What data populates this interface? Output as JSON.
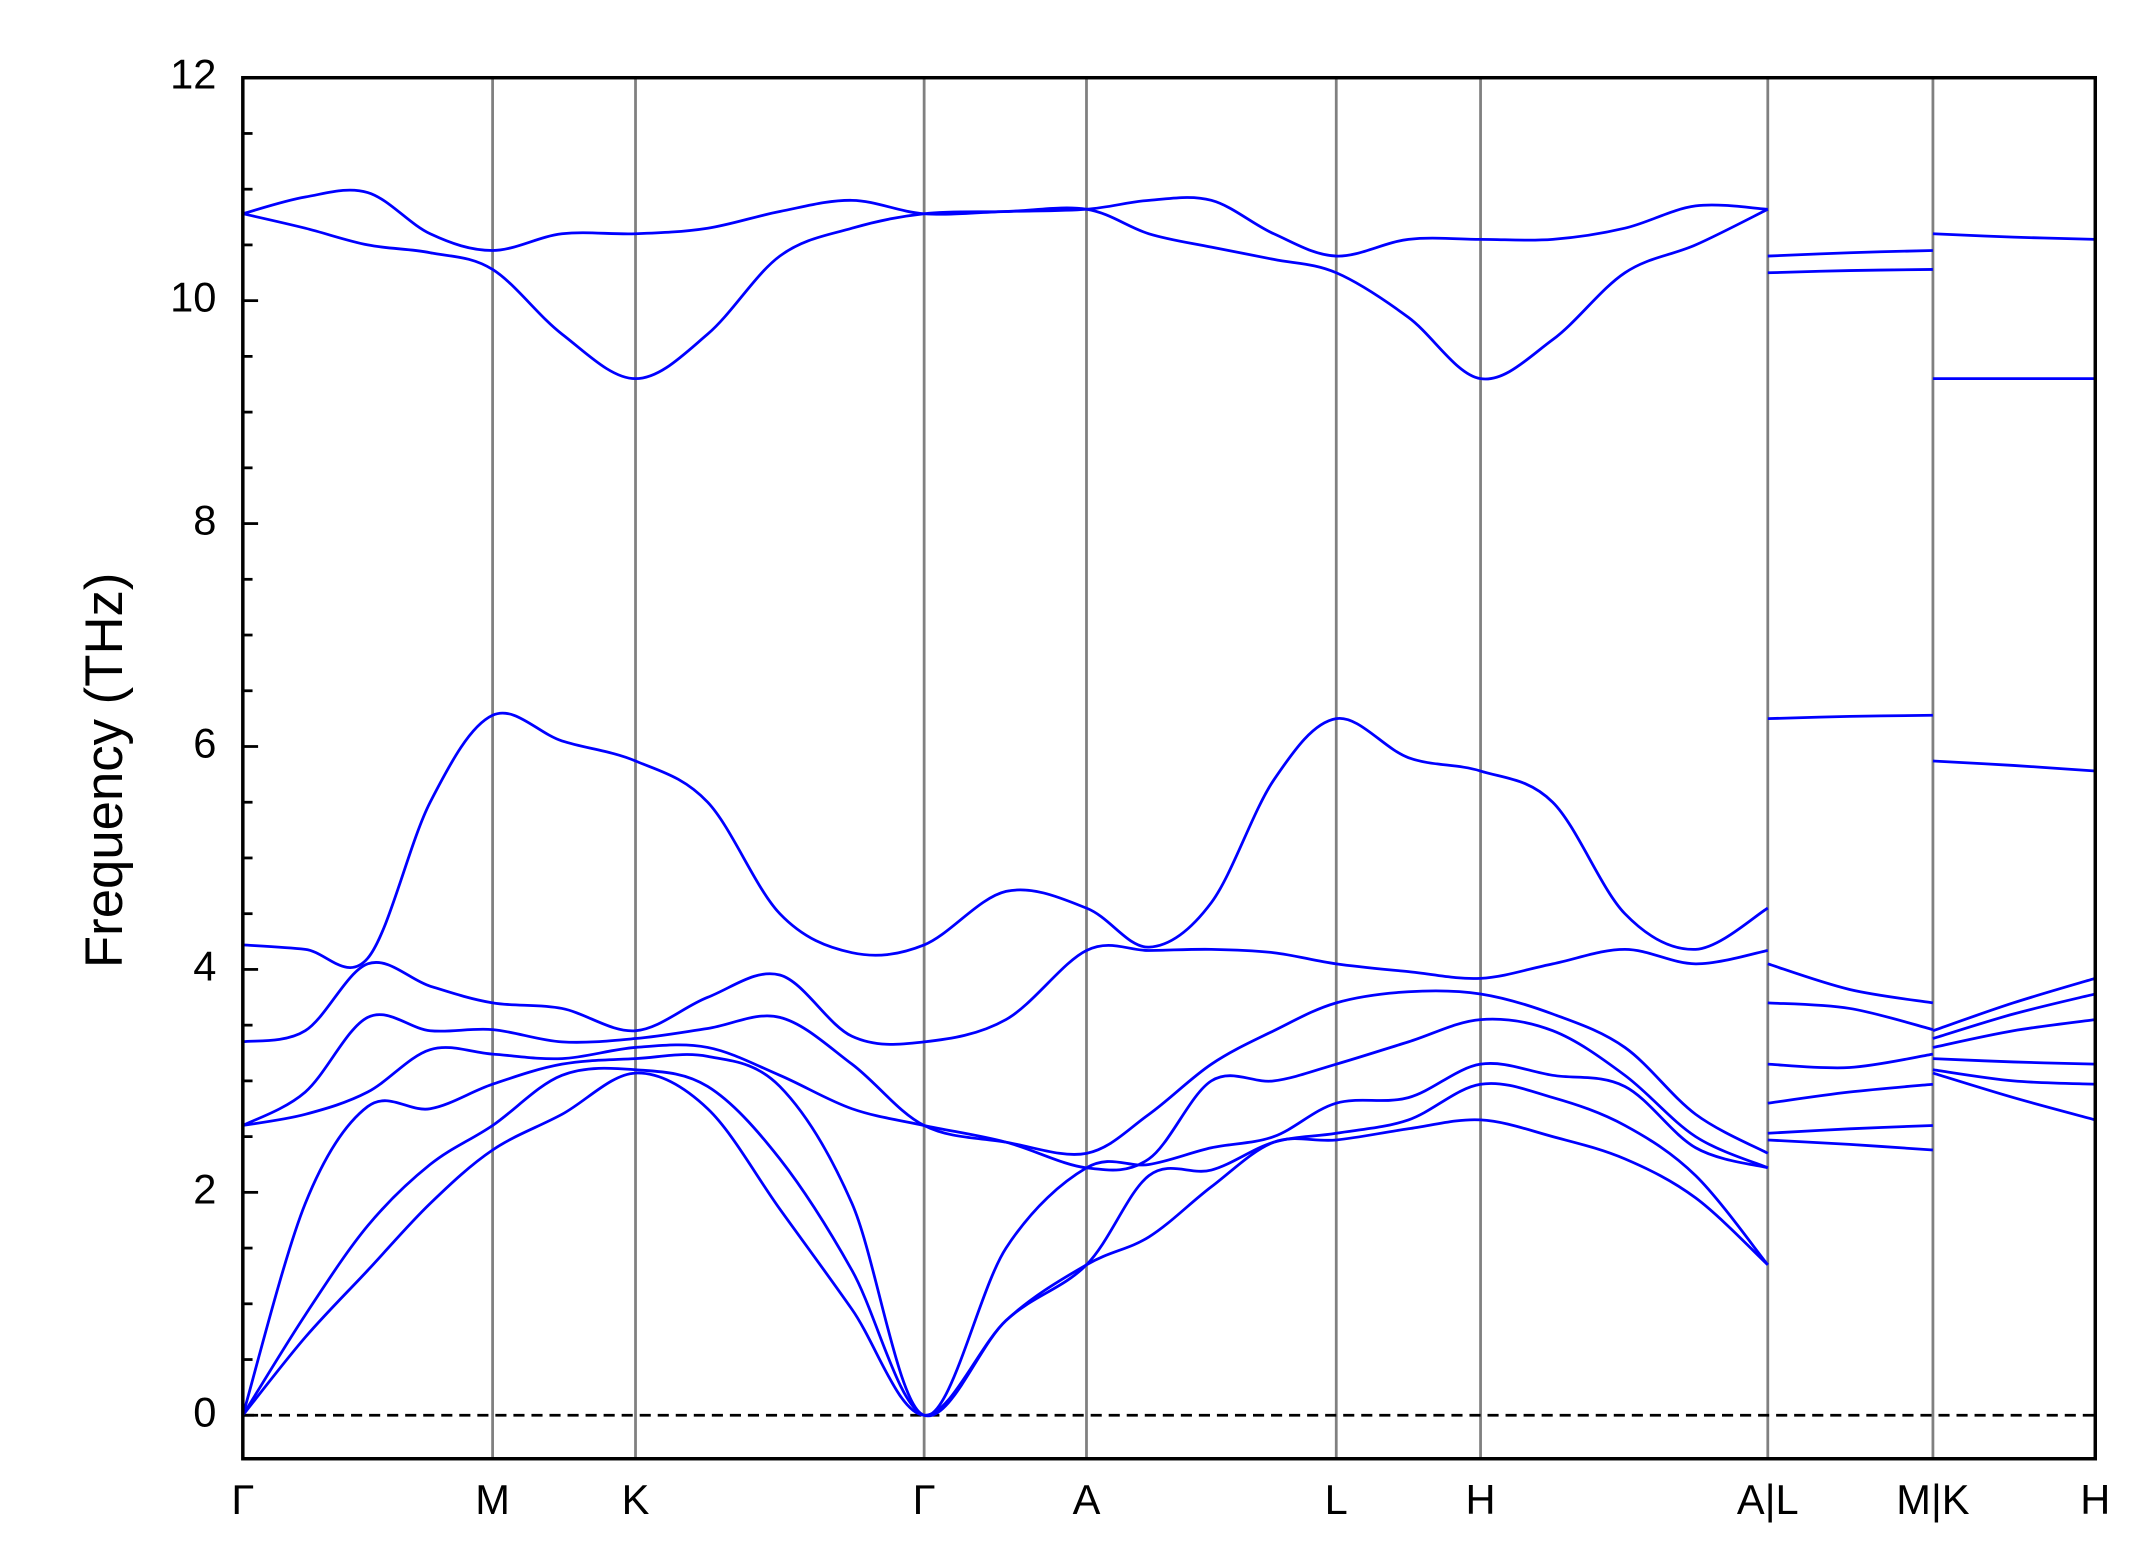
{
  "chart_data": {
    "type": "line",
    "ylabel": "Frequency (THz)",
    "color": "#0000ff",
    "ylim": [
      -0.39,
      12
    ],
    "yticks": [
      0,
      2,
      4,
      6,
      8,
      10,
      12
    ],
    "yminorticks": [
      0.5,
      1,
      1.5,
      2.5,
      3,
      3.5,
      4.5,
      5,
      5.5,
      6.5,
      7,
      7.5,
      8.5,
      9,
      9.5,
      10.5,
      11,
      11.5
    ],
    "xlim": [
      0,
      13.35
    ],
    "xticks": [
      {
        "value": 0,
        "label": "Γ"
      },
      {
        "value": 1.8,
        "label": "M"
      },
      {
        "value": 2.83,
        "label": "K"
      },
      {
        "value": 4.91,
        "label": "Γ"
      },
      {
        "value": 6.08,
        "label": "A"
      },
      {
        "value": 7.88,
        "label": "L"
      },
      {
        "value": 8.92,
        "label": "H"
      },
      {
        "value": 10.99,
        "label": "A|L"
      },
      {
        "value": 12.18,
        "label": "M|K"
      },
      {
        "value": 13.35,
        "label": "H"
      }
    ],
    "xgrid": true,
    "xgrid_color": "#808080",
    "hline": 0,
    "x": [
      0,
      0.45,
      0.9,
      1.35,
      1.8,
      2.3,
      2.83,
      3.35,
      3.87,
      4.39,
      4.91,
      5.5,
      6.08,
      6.53,
      6.98,
      7.43,
      7.88,
      8.4,
      8.92,
      9.44,
      9.96,
      10.47,
      10.99,
      10.99,
      10.99,
      11.58,
      12.18,
      12.18,
      12.18,
      12.76,
      13.35
    ],
    "series": [
      {
        "values": [
          0,
          0.7,
          1.3,
          1.9,
          2.38,
          2.7,
          3.07,
          2.75,
          1.85,
          0.95,
          0,
          0.85,
          1.35,
          1.6,
          2.05,
          2.45,
          2.47,
          2.57,
          2.65,
          2.5,
          2.3,
          1.95,
          1.35,
          null,
          2.47,
          2.43,
          2.38,
          null,
          3.07,
          2.85,
          2.65
        ]
      },
      {
        "values": [
          0,
          0.9,
          1.7,
          2.25,
          2.6,
          3.05,
          3.1,
          2.95,
          2.3,
          1.3,
          0,
          0.85,
          1.35,
          2.15,
          2.2,
          2.45,
          2.53,
          2.65,
          2.97,
          2.85,
          2.6,
          2.15,
          1.35,
          null,
          2.53,
          2.57,
          2.6,
          null,
          3.1,
          3.0,
          2.97
        ]
      },
      {
        "values": [
          0,
          1.9,
          2.77,
          2.75,
          2.97,
          3.15,
          3.2,
          3.22,
          2.95,
          1.9,
          0,
          1.5,
          2.22,
          2.25,
          2.4,
          2.5,
          2.8,
          2.85,
          3.15,
          3.05,
          2.95,
          2.4,
          2.22,
          null,
          2.8,
          2.9,
          2.97,
          null,
          3.2,
          3.17,
          3.15
        ]
      },
      {
        "values": [
          2.6,
          2.7,
          2.9,
          3.28,
          3.24,
          3.2,
          3.3,
          3.3,
          3.05,
          2.75,
          2.6,
          2.45,
          2.22,
          2.3,
          3.0,
          3.0,
          3.15,
          3.35,
          3.55,
          3.45,
          3.05,
          2.5,
          2.22,
          null,
          3.15,
          3.12,
          3.24,
          null,
          3.3,
          3.45,
          3.55
        ]
      },
      {
        "values": [
          2.6,
          2.9,
          3.57,
          3.45,
          3.46,
          3.35,
          3.38,
          3.47,
          3.57,
          3.15,
          2.6,
          2.45,
          2.35,
          2.7,
          3.15,
          3.45,
          3.7,
          3.8,
          3.78,
          3.6,
          3.3,
          2.7,
          2.35,
          null,
          3.7,
          3.65,
          3.46,
          null,
          3.38,
          3.6,
          3.78
        ]
      },
      {
        "values": [
          3.35,
          3.45,
          4.05,
          3.85,
          3.7,
          3.65,
          3.45,
          3.75,
          3.95,
          3.4,
          3.35,
          3.55,
          4.17,
          4.17,
          4.18,
          4.15,
          4.05,
          3.98,
          3.92,
          4.05,
          4.18,
          4.05,
          4.17,
          null,
          4.05,
          3.82,
          3.7,
          null,
          3.45,
          3.7,
          3.92
        ]
      },
      {
        "values": [
          4.22,
          4.18,
          4.1,
          5.5,
          6.28,
          6.05,
          5.87,
          5.5,
          4.5,
          4.15,
          4.22,
          4.7,
          4.55,
          4.2,
          4.6,
          5.7,
          6.25,
          5.9,
          5.78,
          5.5,
          4.5,
          4.18,
          4.55,
          null,
          6.25,
          6.27,
          6.28,
          null,
          5.87,
          5.83,
          5.78
        ]
      },
      {
        "values": [
          10.78,
          10.65,
          10.5,
          10.43,
          10.28,
          9.7,
          9.3,
          9.7,
          10.4,
          10.65,
          10.78,
          10.8,
          10.82,
          10.6,
          10.48,
          10.37,
          10.25,
          9.85,
          9.3,
          9.65,
          10.25,
          10.5,
          10.82,
          null,
          10.25,
          10.27,
          10.28,
          null,
          9.3,
          9.3,
          9.3
        ]
      },
      {
        "values": [
          10.78,
          10.93,
          10.97,
          10.6,
          10.45,
          10.6,
          10.6,
          10.65,
          10.8,
          10.9,
          10.78,
          10.8,
          10.82,
          10.9,
          10.9,
          10.6,
          10.4,
          10.55,
          10.55,
          10.55,
          10.65,
          10.85,
          10.82,
          null,
          10.4,
          10.43,
          10.45,
          null,
          10.6,
          10.57,
          10.55
        ]
      }
    ]
  }
}
